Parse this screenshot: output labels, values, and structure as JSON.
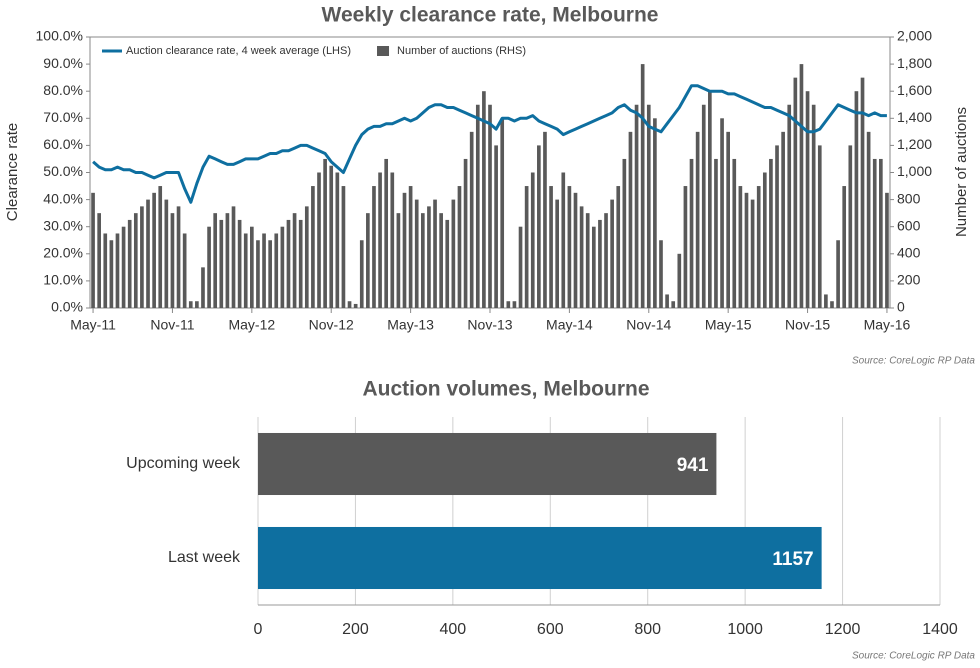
{
  "chart_data": [
    {
      "type": "combo",
      "title": "Weekly clearance rate, Melbourne",
      "source": "Source: CoreLogic  RP Data",
      "ylabel": "Clearance rate",
      "y2label": "Number of auctions",
      "categories": [
        "May-11",
        null,
        null,
        null,
        null,
        null,
        null,
        null,
        null,
        null,
        null,
        null,
        null,
        "Nov-11",
        null,
        null,
        null,
        null,
        null,
        null,
        null,
        null,
        null,
        null,
        null,
        null,
        "May-12",
        null,
        null,
        null,
        null,
        null,
        null,
        null,
        null,
        null,
        null,
        null,
        null,
        "Nov-12",
        null,
        null,
        null,
        null,
        null,
        null,
        null,
        null,
        null,
        null,
        null,
        null,
        "May-13",
        null,
        null,
        null,
        null,
        null,
        null,
        null,
        null,
        null,
        null,
        null,
        null,
        "Nov-13",
        null,
        null,
        null,
        null,
        null,
        null,
        null,
        null,
        null,
        null,
        null,
        null,
        "May-14",
        null,
        null,
        null,
        null,
        null,
        null,
        null,
        null,
        null,
        null,
        null,
        null,
        "Nov-14",
        null,
        null,
        null,
        null,
        null,
        null,
        null,
        null,
        null,
        null,
        null,
        null,
        "May-15",
        null,
        null,
        null,
        null,
        null,
        null,
        null,
        null,
        null,
        null,
        null,
        null,
        "Nov-15",
        null,
        null,
        null,
        null,
        null,
        null,
        null,
        null,
        null,
        null,
        null,
        null,
        "May-16"
      ],
      "series": [
        {
          "name": "Number of auctions (RHS)",
          "type": "bar",
          "axis": "y2",
          "color": "#595959",
          "values": [
            850,
            700,
            550,
            500,
            550,
            600,
            650,
            700,
            750,
            800,
            850,
            900,
            800,
            700,
            750,
            550,
            50,
            50,
            300,
            600,
            700,
            650,
            700,
            750,
            650,
            550,
            600,
            500,
            550,
            500,
            550,
            600,
            650,
            700,
            650,
            750,
            900,
            1000,
            1100,
            1050,
            1000,
            900,
            50,
            30,
            500,
            700,
            900,
            1000,
            1100,
            1000,
            700,
            850,
            900,
            800,
            700,
            750,
            800,
            700,
            650,
            800,
            900,
            1100,
            1300,
            1500,
            1600,
            1500,
            1200,
            1400,
            50,
            50,
            600,
            900,
            1000,
            1200,
            1300,
            900,
            800,
            1000,
            900,
            850,
            750,
            700,
            600,
            650,
            700,
            800,
            900,
            1100,
            1300,
            1500,
            1800,
            1500,
            1400,
            500,
            100,
            50,
            400,
            900,
            1100,
            1300,
            1500,
            1600,
            1100,
            1400,
            1300,
            1100,
            900,
            850,
            800,
            900,
            1000,
            1100,
            1200,
            1300,
            1500,
            1700,
            1800,
            1600,
            1500,
            1200,
            100,
            50,
            500,
            900,
            1200,
            1600,
            1700,
            1300,
            1100,
            1100,
            850
          ]
        },
        {
          "name": "Auction clearance rate, 4 week average (LHS)",
          "type": "line",
          "color": "#0e6fa0",
          "values": [
            54,
            52,
            51,
            51,
            52,
            51,
            51,
            50,
            50,
            49,
            48,
            49,
            50,
            50,
            50,
            44,
            39,
            46,
            52,
            56,
            55,
            54,
            53,
            53,
            54,
            55,
            55,
            55,
            56,
            57,
            57,
            58,
            58,
            59,
            60,
            60,
            59,
            58,
            57,
            54,
            52,
            50,
            55,
            60,
            64,
            66,
            67,
            67,
            68,
            68,
            69,
            70,
            69,
            70,
            72,
            74,
            75,
            75,
            74,
            74,
            73,
            72,
            71,
            70,
            69,
            68,
            66,
            70,
            70,
            69,
            70,
            70,
            71,
            69,
            68,
            67,
            66,
            64,
            65,
            66,
            67,
            68,
            69,
            70,
            71,
            72,
            74,
            75,
            73,
            72,
            70,
            67,
            66,
            65,
            68,
            71,
            74,
            78,
            82,
            82,
            81,
            80,
            80,
            80,
            79,
            79,
            78,
            77,
            76,
            75,
            74,
            74,
            73,
            72,
            71,
            69,
            67,
            65,
            65,
            66,
            69,
            72,
            75,
            74,
            73,
            72,
            72,
            71,
            72,
            71,
            71
          ]
        }
      ],
      "ylim": [
        0,
        100
      ],
      "yticks": [
        {
          "value": 0,
          "label": "0.0%"
        },
        {
          "value": 10,
          "label": "10.0%"
        },
        {
          "value": 20,
          "label": "20.0%"
        },
        {
          "value": 30,
          "label": "30.0%"
        },
        {
          "value": 40,
          "label": "40.0%"
        },
        {
          "value": 50,
          "label": "50.0%"
        },
        {
          "value": 60,
          "label": "60.0%"
        },
        {
          "value": 70,
          "label": "70.0%"
        },
        {
          "value": 80,
          "label": "80.0%"
        },
        {
          "value": 90,
          "label": "90.0%"
        },
        {
          "value": 100,
          "label": "100.0%"
        }
      ],
      "y2lim": [
        0,
        2000
      ],
      "y2ticks": [
        0,
        200,
        400,
        600,
        800,
        {
          "value": 1000,
          "label": "1,000"
        },
        {
          "value": 1200,
          "label": "1,200"
        },
        {
          "value": 1400,
          "label": "1,400"
        },
        {
          "value": 1600,
          "label": "1,600"
        },
        {
          "value": 1800,
          "label": "1,800"
        },
        {
          "value": 2000,
          "label": "2,000"
        }
      ],
      "grid": false,
      "legend": "top-left"
    },
    {
      "type": "hbar",
      "title": "Auction volumes, Melbourne",
      "source": "Source: CoreLogic  RP Data",
      "categories": [
        "Upcoming week",
        "Last week"
      ],
      "values": [
        941,
        1157
      ],
      "colors": [
        "#595959",
        "#0e6fa0"
      ],
      "xlim": [
        0,
        1400
      ],
      "xticks": [
        0,
        200,
        400,
        600,
        800,
        1000,
        1200,
        1400
      ],
      "grid": true
    }
  ]
}
